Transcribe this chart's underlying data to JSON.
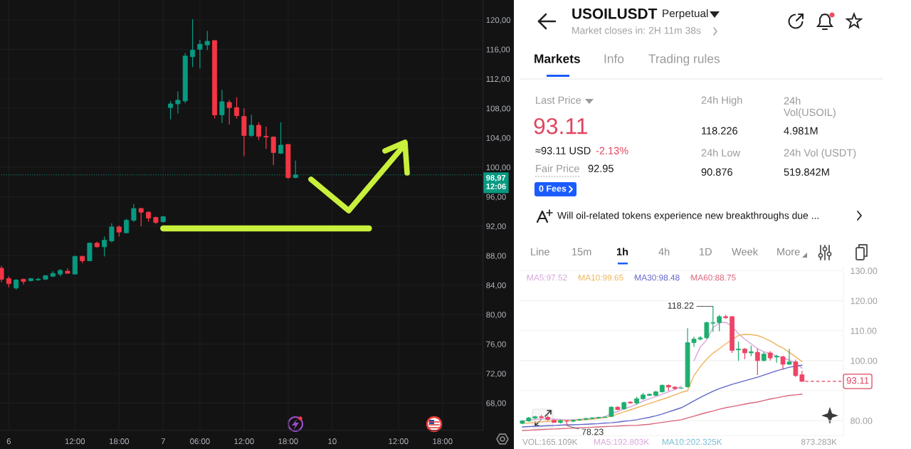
{
  "chart_data": [
    {
      "type": "candlestick",
      "categories": [
        null,
        "6",
        null,
        null,
        null,
        null,
        null,
        null,
        null,
        null,
        "12:00",
        null,
        null,
        null,
        null,
        null,
        "18:00",
        null,
        null,
        null,
        null,
        null,
        "7",
        null,
        null,
        null,
        null,
        "06:00",
        null,
        null,
        null,
        null,
        null,
        "12:00",
        null,
        null,
        null,
        null,
        null,
        "18:00",
        null,
        null,
        null,
        null,
        null,
        "10",
        null,
        null,
        null,
        null,
        null,
        null,
        null,
        null,
        "12:00",
        null,
        null,
        null,
        null,
        null,
        "18:00",
        null,
        null,
        null,
        null,
        null
      ],
      "ohlc": [
        [
          86.3,
          86.6,
          84.4,
          84.8
        ],
        [
          84.9,
          85.2,
          83.7,
          84.2
        ],
        [
          83.6,
          84.8,
          83.4,
          84.7
        ],
        [
          84.8,
          84.9,
          84.1,
          84.5
        ],
        [
          84.6,
          84.9,
          84.5,
          84.9
        ],
        [
          84.7,
          85.0,
          84.6,
          84.8
        ],
        [
          84.8,
          85.3,
          84.7,
          85.3
        ],
        [
          85.2,
          85.9,
          85.1,
          85.6
        ],
        [
          85.5,
          86.2,
          85.2,
          86.0
        ],
        [
          85.9,
          86.3,
          85.6,
          85.6
        ],
        [
          85.5,
          88.0,
          85.5,
          87.9
        ],
        [
          87.9,
          88.0,
          87.0,
          87.3
        ],
        [
          87.3,
          89.8,
          87.3,
          89.7
        ],
        [
          89.7,
          89.9,
          89.1,
          89.2
        ],
        [
          89.2,
          90.6,
          87.9,
          90.1
        ],
        [
          90.0,
          92.4,
          89.8,
          91.9
        ],
        [
          91.9,
          92.1,
          90.6,
          91.2
        ],
        [
          91.1,
          93.0,
          91.1,
          92.8
        ],
        [
          92.8,
          95.0,
          92.6,
          94.4
        ],
        [
          94.4,
          94.5,
          92.0,
          93.9
        ],
        [
          93.9,
          94.0,
          92.6,
          93.1
        ],
        [
          93.2,
          93.3,
          92.3,
          92.5
        ],
        [
          92.6,
          93.4,
          92.5,
          93.3
        ],
        [
          108.1,
          109.0,
          106.5,
          108.6
        ],
        [
          108.6,
          110.3,
          107.3,
          109.1
        ],
        [
          109.0,
          115.5,
          108.7,
          115.1
        ],
        [
          115.0,
          120.1,
          113.6,
          115.9
        ],
        [
          116.0,
          117.3,
          113.4,
          116.7
        ],
        [
          116.6,
          118.5,
          115.9,
          117.1
        ],
        [
          117.2,
          117.2,
          106.6,
          107.1
        ],
        [
          107.1,
          110.5,
          106.0,
          108.9
        ],
        [
          108.8,
          109.1,
          105.8,
          108.1
        ],
        [
          108.1,
          109.5,
          106.6,
          107.0
        ],
        [
          106.9,
          108.0,
          101.5,
          104.3
        ],
        [
          104.3,
          107.1,
          104.1,
          105.7
        ],
        [
          105.7,
          106.1,
          103.7,
          104.2
        ],
        [
          104.2,
          105.5,
          102.5,
          104.1
        ],
        [
          104.1,
          104.2,
          100.3,
          102.0
        ],
        [
          101.9,
          106.1,
          101.8,
          103.0
        ],
        [
          103.1,
          103.1,
          98.4,
          98.6
        ],
        [
          98.6,
          100.9,
          98.5,
          98.97
        ],
        null,
        null,
        null,
        null,
        null,
        null,
        null,
        null,
        null,
        null,
        null,
        null,
        null,
        null,
        null,
        null,
        null,
        null,
        null,
        null,
        null,
        null,
        null,
        null,
        null
      ],
      "colors": [
        "#f23645",
        "#f23645",
        "#089981",
        "#f23645",
        "#089981",
        "#089981",
        "#089981",
        "#089981",
        "#089981",
        "#f23645",
        "#089981",
        "#f23645",
        "#089981",
        "#f23645",
        "#089981",
        "#089981",
        "#f23645",
        "#089981",
        "#089981",
        "#f23645",
        "#f23645",
        "#f23645",
        "#089981",
        "#089981",
        "#089981",
        "#089981",
        "#089981",
        "#089981",
        "#089981",
        "#f23645",
        "#089981",
        "#f23645",
        "#f23645",
        "#f23645",
        "#089981",
        "#f23645",
        "#f23645",
        "#f23645",
        "#089981",
        "#f23645",
        "#089981",
        null,
        null,
        null,
        null,
        null,
        null,
        null,
        null,
        null,
        null,
        null,
        null,
        null,
        null,
        null,
        null,
        null,
        null,
        null,
        null,
        null,
        null,
        null,
        null,
        null
      ],
      "series": [
        {
          "type": "line",
          "color": "#c8f03c",
          "values": [
            null,
            null,
            null,
            null,
            null,
            null,
            null,
            null,
            null,
            null,
            null,
            null,
            null,
            null,
            null,
            null,
            null,
            null,
            null,
            null,
            null,
            null,
            91.7,
            91.7,
            91.7,
            91.7,
            91.7,
            91.7,
            91.7,
            91.7,
            91.7,
            91.7,
            91.7,
            91.7,
            91.7,
            91.7,
            91.7,
            91.7,
            91.7,
            91.7,
            91.7,
            91.7,
            91.7,
            91.7,
            91.7,
            91.7,
            91.7,
            91.7,
            91.7,
            91.7,
            91.7,
            null,
            null,
            null,
            null,
            null,
            null,
            null,
            null,
            null,
            null,
            null,
            null,
            null,
            null,
            null
          ]
        }
      ],
      "ylim": [
        64.3,
        122.7
      ],
      "yticks": [
        {
          "value": 68,
          "label": "68,00"
        },
        {
          "value": 72,
          "label": "72,00"
        },
        {
          "value": 76,
          "label": "76,00"
        },
        {
          "value": 80,
          "label": "80,00"
        },
        {
          "value": 84,
          "label": "84,00"
        },
        {
          "value": 88,
          "label": "88,00"
        },
        {
          "value": 92,
          "label": "92,00"
        },
        {
          "value": 96,
          "label": "96,00"
        },
        {
          "value": 100,
          "label": "100,00"
        },
        {
          "value": 104,
          "label": "104,00"
        },
        {
          "value": 108,
          "label": "108,00"
        },
        {
          "value": 112,
          "label": "112,00"
        },
        {
          "value": 116,
          "label": "116,00"
        },
        {
          "value": 120,
          "label": "120,00"
        }
      ],
      "grid": true,
      "ref_lines": [
        {
          "axis": "y",
          "value": 98.97,
          "label": "98,97\n12:06",
          "color": "#089981",
          "line_style": "dotted"
        }
      ]
    },
    {
      "type": "other",
      "title": "USOILUSDT",
      "subtitle": "Market closes in: 2H 11m 38s",
      "annotations": [
        "Perpetual",
        "Markets",
        "Info",
        "Trading rules",
        "Last Price",
        "93.11",
        "≈93.11 USD",
        "-2.13%",
        "Fair Price",
        "92.95",
        "0 Fees",
        "24h High",
        "118.226",
        "24h\nVol(USOIL)",
        "4.981M",
        "24h Low",
        "90.876",
        "24h Vol (USDT)",
        "519.842M",
        "Will oil-related tokens experience new breakthroughs due ...",
        "Line",
        "15m",
        "1h",
        "4h",
        "1D",
        "Week",
        "More"
      ]
    },
    {
      "type": "candlestick",
      "categories": [
        null,
        null,
        null,
        null,
        null,
        null,
        null,
        null,
        null,
        null,
        null,
        null,
        null,
        null,
        null,
        null,
        null,
        null,
        null,
        null,
        null,
        null,
        null,
        null,
        null,
        null,
        null,
        null,
        null,
        null,
        null,
        null,
        null,
        null,
        null,
        null,
        null,
        null,
        null,
        null,
        null,
        null,
        null,
        null,
        null,
        null,
        null,
        null,
        null,
        null,
        null
      ],
      "ohlc": [
        [
          79.1,
          80.1,
          78.9,
          79.9
        ],
        [
          79.9,
          81.2,
          79.6,
          80.9
        ],
        [
          80.9,
          81.6,
          80.5,
          81.3
        ],
        [
          81.3,
          81.9,
          80.8,
          81.0
        ],
        [
          81.1,
          81.7,
          79.9,
          80.4
        ],
        [
          80.1,
          80.4,
          79.3,
          79.4
        ],
        [
          79.4,
          80.3,
          79.0,
          80.0
        ],
        [
          79.9,
          80.2,
          78.23,
          79.8
        ],
        [
          79.8,
          80.3,
          79.5,
          80.1
        ],
        [
          80.2,
          80.6,
          79.9,
          80.4
        ],
        [
          80.4,
          80.9,
          80.2,
          80.7
        ],
        [
          80.7,
          81.1,
          80.5,
          80.9
        ],
        [
          80.9,
          81.3,
          80.7,
          81.1
        ],
        [
          81.1,
          81.4,
          80.9,
          81.2
        ],
        [
          81.4,
          84.8,
          81.2,
          84.5
        ],
        [
          84.5,
          84.8,
          83.4,
          83.7
        ],
        [
          83.9,
          86.3,
          83.6,
          86.0
        ],
        [
          86.2,
          86.4,
          85.6,
          85.9
        ],
        [
          85.9,
          88.0,
          85.3,
          87.3
        ],
        [
          87.3,
          89.2,
          87.0,
          88.6
        ],
        [
          88.4,
          89.1,
          88.2,
          88.8
        ],
        [
          88.4,
          89.9,
          88.2,
          89.6
        ],
        [
          89.6,
          92.0,
          89.4,
          91.8
        ],
        [
          91.8,
          92.0,
          89.9,
          91.2
        ],
        [
          91.2,
          91.4,
          90.3,
          90.7
        ],
        [
          90.8,
          91.0,
          90.6,
          90.9
        ],
        [
          91.3,
          110.8,
          91.0,
          106.0
        ],
        [
          106.0,
          108.0,
          104.6,
          107.2
        ],
        [
          107.2,
          108.2,
          106.8,
          107.6
        ],
        [
          107.6,
          113.0,
          107.3,
          112.7
        ],
        [
          112.5,
          118.22,
          109.6,
          112.7
        ],
        [
          112.7,
          115.3,
          109.8,
          114.7
        ],
        [
          114.7,
          115.3,
          114.0,
          114.3
        ],
        [
          114.7,
          114.9,
          102.6,
          103.4
        ],
        [
          103.6,
          106.4,
          99.9,
          103.9
        ],
        [
          103.9,
          104.2,
          100.5,
          102.6
        ],
        [
          102.6,
          105.0,
          101.5,
          103.0
        ],
        [
          102.8,
          104.0,
          95.2,
          100.0
        ],
        [
          100.0,
          102.9,
          99.8,
          102.2
        ],
        [
          102.6,
          103.2,
          100.0,
          100.9
        ],
        [
          101.2,
          102.0,
          99.3,
          101.5
        ],
        [
          101.3,
          101.7,
          97.0,
          98.8
        ],
        [
          98.8,
          103.9,
          98.6,
          99.6
        ],
        [
          99.6,
          100.3,
          94.6,
          95.0
        ],
        [
          95.3,
          96.6,
          93.0,
          93.11
        ],
        null,
        null,
        null,
        null,
        null,
        null
      ],
      "colors": [
        "#1eae6e",
        "#1eae6e",
        "#1eae6e",
        "#ee4466",
        "#ee4466",
        "#ee4466",
        "#1eae6e",
        "#ee4466",
        "#1eae6e",
        "#1eae6e",
        "#1eae6e",
        "#1eae6e",
        "#1eae6e",
        "#1eae6e",
        "#1eae6e",
        "#ee4466",
        "#1eae6e",
        "#ee4466",
        "#1eae6e",
        "#1eae6e",
        "#1eae6e",
        "#1eae6e",
        "#1eae6e",
        "#ee4466",
        "#ee4466",
        "#1eae6e",
        "#1eae6e",
        "#1eae6e",
        "#1eae6e",
        "#1eae6e",
        "#1eae6e",
        "#1eae6e",
        "#ee4466",
        "#ee4466",
        "#1eae6e",
        "#ee4466",
        "#1eae6e",
        "#ee4466",
        "#1eae6e",
        "#ee4466",
        "#1eae6e",
        "#ee4466",
        "#1eae6e",
        "#ee4466",
        "#ee4466",
        null,
        null,
        null,
        null,
        null,
        null
      ],
      "series": [
        {
          "name": "MA5:97.52",
          "type": "line",
          "color": "#d7a6d9",
          "values": [
            79.9,
            80.1,
            80.4,
            80.6,
            80.6,
            80.5,
            80.4,
            80.3,
            80.3,
            80.4,
            80.6,
            80.8,
            81.0,
            81.3,
            82.4,
            83.0,
            84.0,
            84.6,
            85.6,
            86.5,
            87.3,
            88.0,
            88.8,
            89.6,
            90.4,
            91.4,
            null,
            100.0,
            104.5,
            106.9,
            111.0,
            112.6,
            112.8,
            111.5,
            109.0,
            107.2,
            105.6,
            104.0,
            103.0,
            102.3,
            101.6,
            100.9,
            100.2,
            99.2,
            97.5,
            null,
            null,
            null,
            null,
            null,
            null
          ]
        },
        {
          "name": "MA10:99.65",
          "type": "line",
          "color": "#f0b45c",
          "values": [
            79.1,
            79.2,
            79.4,
            79.6,
            79.8,
            79.9,
            80.0,
            80.0,
            80.1,
            80.2,
            80.3,
            80.5,
            80.7,
            81.0,
            81.5,
            82.2,
            82.9,
            83.6,
            84.3,
            85.0,
            85.7,
            86.4,
            87.1,
            87.8,
            88.6,
            89.4,
            90.0,
            95.0,
            98.0,
            100.5,
            102.5,
            104.0,
            105.6,
            107.0,
            108.4,
            108.8,
            108.7,
            108.4,
            107.6,
            106.6,
            105.3,
            104.2,
            102.8,
            101.3,
            99.7,
            null,
            null,
            null,
            null,
            null,
            null
          ]
        },
        {
          "name": "MA30:98.48",
          "type": "line",
          "color": "#6366c9",
          "values": [
            77.9,
            78.0,
            78.1,
            78.2,
            78.3,
            78.4,
            78.5,
            78.6,
            78.6,
            78.7,
            78.8,
            78.9,
            79.0,
            79.2,
            79.3,
            79.5,
            79.8,
            80.0,
            80.3,
            80.7,
            81.1,
            81.6,
            82.2,
            82.9,
            83.6,
            84.3,
            85.4,
            86.6,
            87.7,
            88.8,
            89.8,
            90.7,
            91.4,
            92.1,
            92.7,
            93.3,
            93.9,
            94.5,
            95.2,
            95.9,
            96.6,
            97.2,
            97.8,
            98.2,
            98.5,
            null,
            null,
            null,
            null,
            null,
            null
          ]
        },
        {
          "name": "MA60:88.75",
          "type": "line",
          "color": "#d9667a",
          "values": [
            76.7,
            76.8,
            76.9,
            77.0,
            77.1,
            77.2,
            77.3,
            77.4,
            77.5,
            77.6,
            77.7,
            77.8,
            77.9,
            78.0,
            78.1,
            78.2,
            78.3,
            78.4,
            78.4,
            78.6,
            78.8,
            79.1,
            79.4,
            79.7,
            80.0,
            80.3,
            80.9,
            81.5,
            82.1,
            82.7,
            83.2,
            83.8,
            84.3,
            84.7,
            85.1,
            85.5,
            85.9,
            86.2,
            86.7,
            87.2,
            87.6,
            88.0,
            88.4,
            88.6,
            88.8,
            null,
            null,
            null,
            null,
            null,
            null
          ]
        }
      ],
      "ylim": [
        75.0,
        131.3
      ],
      "yticks": [
        {
          "value": 80,
          "label": "80.00"
        },
        {
          "value": 90,
          "label": null
        },
        {
          "value": 100,
          "label": "100.00"
        },
        {
          "value": 110,
          "label": "110.00"
        },
        {
          "value": 120,
          "label": "120.00"
        },
        {
          "value": 130,
          "label": "130.00"
        }
      ],
      "grid": "y",
      "legend": "top left",
      "tick_labels": "y",
      "ref_lines": [
        {
          "axis": "y",
          "value": 93.11,
          "label": "93.11",
          "color": "#e0455f",
          "line_style": "dashed"
        }
      ],
      "annotations": [
        "118.22",
        "78.23",
        "VOL:165.109K",
        "MA5:192.803K",
        "MA10:202.325K",
        "873.283K"
      ]
    }
  ]
}
